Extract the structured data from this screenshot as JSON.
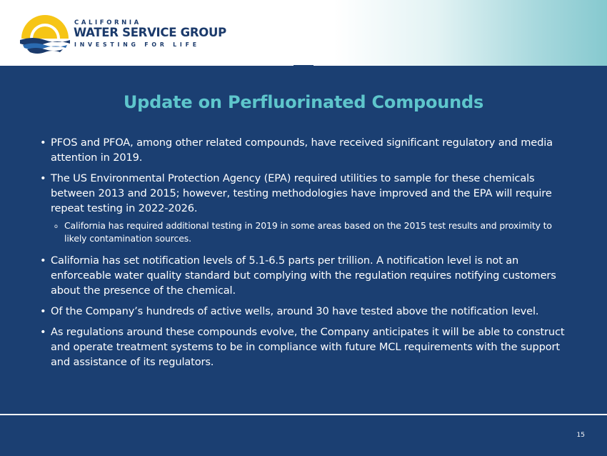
{
  "logo": {
    "top_text": "CALIFORNIA",
    "main_text": "WATER SERVICE GROUP",
    "bottom_text": "INVESTING FOR LIFE",
    "colors": {
      "sun": "#f6c516",
      "waves": "#1b3a6b",
      "wave_light": "#2a6ab0"
    }
  },
  "slide": {
    "title": "Update on Perfluorinated Compounds",
    "page_number": "15"
  },
  "bullets": [
    {
      "marker": "•",
      "text": "PFOS and PFOA, among other related compounds, have received significant regulatory and media attention in 2019."
    },
    {
      "marker": "•",
      "text": "The US Environmental Protection Agency (EPA) required utilities to sample for these chemicals between 2013 and 2015; however, testing methodologies have improved and the EPA will require repeat testing in 2022-2026."
    },
    {
      "marker": "•",
      "text": "California has set notification levels of 5.1-6.5 parts per trillion. A notification level is not an enforceable water quality standard but complying with the regulation requires notifying customers about the presence of the chemical."
    },
    {
      "marker": "•",
      "text": "Of the Company’s hundreds of active wells, around 30 have tested above the notification level."
    },
    {
      "marker": "•",
      "text": "As regulations around these compounds evolve, the Company anticipates it will be able to construct and operate treatment systems to be in compliance with future MCL requirements with the support and assistance of its regulators."
    }
  ],
  "sub_bullet": {
    "marker": "o",
    "text": "California has required additional testing in 2019 in some areas based on the 2015 test results and proximity to likely contamination sources."
  },
  "colors": {
    "panel": "#1b3f72",
    "title": "#5ec6cc",
    "text": "#ffffff"
  }
}
